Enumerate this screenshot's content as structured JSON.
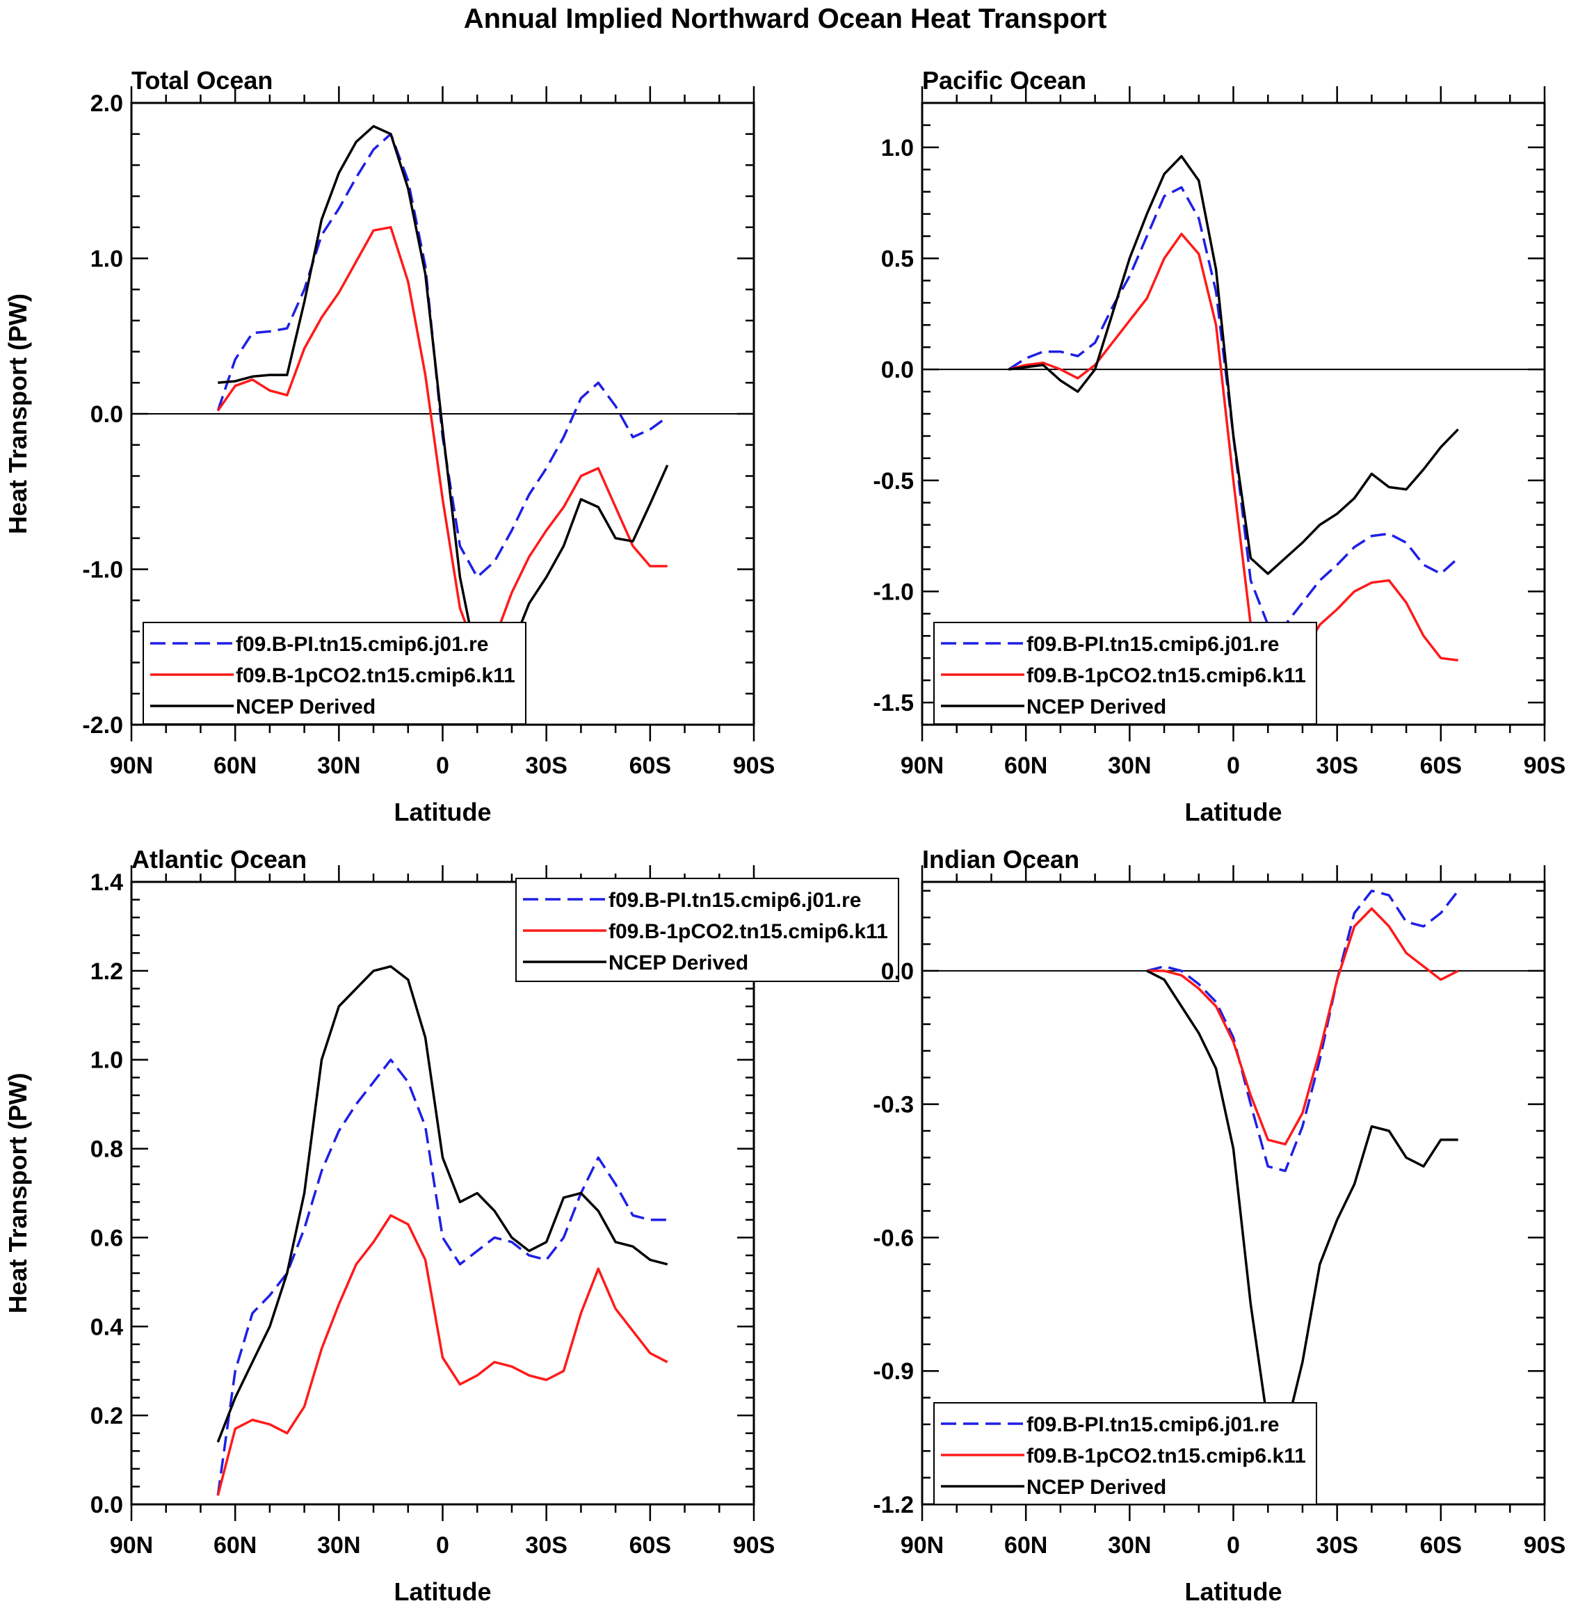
{
  "figure": {
    "title": "Annual Implied Northward Ocean Heat Transport"
  },
  "colors": {
    "pi": "#1f1fe6",
    "co2": "#ff1a1a",
    "ncep": "#000000"
  },
  "chart_data": [
    {
      "type": "line",
      "title": "Total Ocean",
      "xlabel": "Latitude",
      "ylabel": "Heat Transport (PW)",
      "xlim": [
        90,
        -90
      ],
      "ylim": [
        -2.0,
        2.0
      ],
      "xticks": [
        90,
        60,
        30,
        0,
        -30,
        -60,
        -90
      ],
      "xtick_labels": [
        "90N",
        "60N",
        "30N",
        "0",
        "30S",
        "60S",
        "90S"
      ],
      "yticks": [
        -2.0,
        -1.0,
        0.0,
        1.0,
        2.0
      ],
      "ytick_labels": [
        "-2.0",
        "-1.0",
        "0.0",
        "1.0",
        "2.0"
      ],
      "zero_line": true,
      "legend_position": "bottom-left",
      "series": [
        {
          "name": "f09.B-PI.tn15.cmip6.j01.re",
          "style": "dashed",
          "color": "#1f1fe6",
          "x": [
            65,
            60,
            55,
            50,
            45,
            40,
            35,
            30,
            25,
            20,
            15,
            10,
            5,
            0,
            -5,
            -10,
            -15,
            -20,
            -25,
            -30,
            -35,
            -40,
            -45,
            -50,
            -55,
            -60,
            -65
          ],
          "y": [
            0.02,
            0.35,
            0.52,
            0.53,
            0.55,
            0.8,
            1.15,
            1.32,
            1.52,
            1.7,
            1.8,
            1.5,
            0.95,
            -0.15,
            -0.85,
            -1.05,
            -0.95,
            -0.75,
            -0.52,
            -0.35,
            -0.15,
            0.1,
            0.2,
            0.05,
            -0.15,
            -0.1,
            -0.02
          ]
        },
        {
          "name": "f09.B-1pCO2.tn15.cmip6.k11",
          "style": "solid",
          "color": "#ff1a1a",
          "x": [
            65,
            60,
            55,
            50,
            45,
            40,
            35,
            30,
            25,
            20,
            15,
            10,
            5,
            0,
            -5,
            -10,
            -15,
            -20,
            -25,
            -30,
            -35,
            -40,
            -45,
            -50,
            -55,
            -60,
            -65
          ],
          "y": [
            0.02,
            0.18,
            0.22,
            0.15,
            0.12,
            0.42,
            0.62,
            0.78,
            0.98,
            1.18,
            1.2,
            0.85,
            0.25,
            -0.55,
            -1.25,
            -1.55,
            -1.45,
            -1.15,
            -0.92,
            -0.75,
            -0.6,
            -0.4,
            -0.35,
            -0.6,
            -0.85,
            -0.98,
            -0.98
          ]
        },
        {
          "name": "NCEP Derived",
          "style": "solid",
          "color": "#000000",
          "x": [
            65,
            60,
            55,
            50,
            45,
            40,
            35,
            30,
            25,
            20,
            15,
            10,
            5,
            0,
            -5,
            -10,
            -15,
            -20,
            -25,
            -30,
            -35,
            -40,
            -45,
            -50,
            -55,
            -60,
            -65
          ],
          "y": [
            0.2,
            0.21,
            0.24,
            0.25,
            0.25,
            0.72,
            1.25,
            1.55,
            1.75,
            1.85,
            1.8,
            1.45,
            0.9,
            -0.1,
            -1.05,
            -1.6,
            -1.65,
            -1.5,
            -1.22,
            -1.05,
            -0.85,
            -0.55,
            -0.6,
            -0.8,
            -0.82,
            -0.58,
            -0.33
          ]
        }
      ]
    },
    {
      "type": "line",
      "title": "Pacific Ocean",
      "xlabel": "Latitude",
      "ylabel": "",
      "xlim": [
        90,
        -90
      ],
      "ylim": [
        -1.6,
        1.2
      ],
      "xticks": [
        90,
        60,
        30,
        0,
        -30,
        -60,
        -90
      ],
      "xtick_labels": [
        "90N",
        "60N",
        "30N",
        "0",
        "30S",
        "60S",
        "90S"
      ],
      "yticks": [
        -1.5,
        -1.0,
        -0.5,
        0.0,
        0.5,
        1.0
      ],
      "ytick_labels": [
        "-1.5",
        "-1.0",
        "-0.5",
        "0.0",
        "0.5",
        "1.0"
      ],
      "zero_line": true,
      "legend_position": "bottom-left",
      "series": [
        {
          "name": "f09.B-PI.tn15.cmip6.j01.re",
          "style": "dashed",
          "color": "#1f1fe6",
          "x": [
            65,
            60,
            55,
            50,
            45,
            40,
            35,
            30,
            25,
            20,
            15,
            10,
            5,
            0,
            -5,
            -10,
            -15,
            -20,
            -25,
            -30,
            -35,
            -40,
            -45,
            -50,
            -55,
            -60,
            -65
          ],
          "y": [
            0.0,
            0.05,
            0.08,
            0.08,
            0.06,
            0.12,
            0.28,
            0.42,
            0.6,
            0.78,
            0.82,
            0.68,
            0.35,
            -0.3,
            -0.95,
            -1.15,
            -1.15,
            -1.05,
            -0.95,
            -0.88,
            -0.8,
            -0.75,
            -0.74,
            -0.78,
            -0.88,
            -0.92,
            -0.85
          ]
        },
        {
          "name": "f09.B-1pCO2.tn15.cmip6.k11",
          "style": "solid",
          "color": "#ff1a1a",
          "x": [
            65,
            60,
            55,
            50,
            45,
            40,
            35,
            30,
            25,
            20,
            15,
            10,
            5,
            0,
            -5,
            -10,
            -15,
            -20,
            -25,
            -30,
            -35,
            -40,
            -45,
            -50,
            -55,
            -60,
            -65
          ],
          "y": [
            0.0,
            0.02,
            0.03,
            0.0,
            -0.04,
            0.02,
            0.12,
            0.22,
            0.32,
            0.5,
            0.61,
            0.52,
            0.2,
            -0.5,
            -1.15,
            -1.4,
            -1.4,
            -1.28,
            -1.15,
            -1.08,
            -1.0,
            -0.96,
            -0.95,
            -1.05,
            -1.2,
            -1.3,
            -1.31
          ]
        },
        {
          "name": "NCEP Derived",
          "style": "solid",
          "color": "#000000",
          "x": [
            65,
            60,
            55,
            50,
            45,
            40,
            35,
            30,
            25,
            20,
            15,
            10,
            5,
            0,
            -5,
            -10,
            -15,
            -20,
            -25,
            -30,
            -35,
            -40,
            -45,
            -50,
            -55,
            -60,
            -65
          ],
          "y": [
            0.0,
            0.01,
            0.02,
            -0.05,
            -0.1,
            0.0,
            0.25,
            0.5,
            0.7,
            0.88,
            0.96,
            0.85,
            0.45,
            -0.3,
            -0.85,
            -0.92,
            -0.85,
            -0.78,
            -0.7,
            -0.65,
            -0.58,
            -0.47,
            -0.53,
            -0.54,
            -0.45,
            -0.35,
            -0.27
          ]
        }
      ]
    },
    {
      "type": "line",
      "title": "Atlantic Ocean",
      "xlabel": "Latitude",
      "ylabel": "Heat Transport (PW)",
      "xlim": [
        90,
        -90
      ],
      "ylim": [
        0.0,
        1.4
      ],
      "xticks": [
        90,
        60,
        30,
        0,
        -30,
        -60,
        -90
      ],
      "xtick_labels": [
        "90N",
        "60N",
        "30N",
        "0",
        "30S",
        "60S",
        "90S"
      ],
      "yticks": [
        0.0,
        0.2,
        0.4,
        0.6,
        0.8,
        1.0,
        1.2,
        1.4
      ],
      "ytick_labels": [
        "0.0",
        "0.2",
        "0.4",
        "0.6",
        "0.8",
        "1.0",
        "1.2",
        "1.4"
      ],
      "zero_line": false,
      "legend_position": "top-right",
      "series": [
        {
          "name": "f09.B-PI.tn15.cmip6.j01.re",
          "style": "dashed",
          "color": "#1f1fe6",
          "x": [
            65,
            60,
            55,
            50,
            45,
            40,
            35,
            30,
            25,
            20,
            15,
            10,
            5,
            0,
            -5,
            -10,
            -15,
            -20,
            -25,
            -30,
            -35,
            -40,
            -45,
            -50,
            -55,
            -60,
            -65
          ],
          "y": [
            0.02,
            0.3,
            0.43,
            0.47,
            0.52,
            0.62,
            0.75,
            0.84,
            0.9,
            0.95,
            1.0,
            0.95,
            0.85,
            0.6,
            0.54,
            0.57,
            0.6,
            0.59,
            0.56,
            0.55,
            0.6,
            0.7,
            0.78,
            0.72,
            0.65,
            0.64,
            0.64
          ]
        },
        {
          "name": "f09.B-1pCO2.tn15.cmip6.k11",
          "style": "solid",
          "color": "#ff1a1a",
          "x": [
            65,
            60,
            55,
            50,
            45,
            40,
            35,
            30,
            25,
            20,
            15,
            10,
            5,
            0,
            -5,
            -10,
            -15,
            -20,
            -25,
            -30,
            -35,
            -40,
            -45,
            -50,
            -55,
            -60,
            -65
          ],
          "y": [
            0.02,
            0.17,
            0.19,
            0.18,
            0.16,
            0.22,
            0.35,
            0.45,
            0.54,
            0.59,
            0.65,
            0.63,
            0.55,
            0.33,
            0.27,
            0.29,
            0.32,
            0.31,
            0.29,
            0.28,
            0.3,
            0.43,
            0.53,
            0.44,
            0.39,
            0.34,
            0.32
          ]
        },
        {
          "name": "NCEP Derived",
          "style": "solid",
          "color": "#000000",
          "x": [
            65,
            60,
            55,
            50,
            45,
            40,
            35,
            30,
            25,
            20,
            15,
            10,
            5,
            0,
            -5,
            -10,
            -15,
            -20,
            -25,
            -30,
            -35,
            -40,
            -45,
            -50,
            -55,
            -60,
            -65
          ],
          "y": [
            0.14,
            0.24,
            0.32,
            0.4,
            0.52,
            0.7,
            1.0,
            1.12,
            1.16,
            1.2,
            1.21,
            1.18,
            1.05,
            0.78,
            0.68,
            0.7,
            0.66,
            0.6,
            0.57,
            0.59,
            0.69,
            0.7,
            0.66,
            0.59,
            0.58,
            0.55,
            0.54
          ]
        }
      ]
    },
    {
      "type": "line",
      "title": "Indian Ocean",
      "xlabel": "Latitude",
      "ylabel": "",
      "xlim": [
        90,
        -90
      ],
      "ylim": [
        -1.2,
        0.2
      ],
      "xticks": [
        90,
        60,
        30,
        0,
        -30,
        -60,
        -90
      ],
      "xtick_labels": [
        "90N",
        "60N",
        "30N",
        "0",
        "30S",
        "60S",
        "90S"
      ],
      "yticks": [
        -1.2,
        -0.9,
        -0.6,
        -0.3,
        0.0
      ],
      "ytick_labels": [
        "-1.2",
        "-0.9",
        "-0.6",
        "-0.3",
        "0.0"
      ],
      "zero_line": true,
      "legend_position": "bottom-left",
      "series": [
        {
          "name": "f09.B-PI.tn15.cmip6.j01.re",
          "style": "dashed",
          "color": "#1f1fe6",
          "x": [
            25,
            20,
            15,
            10,
            5,
            0,
            -5,
            -10,
            -15,
            -20,
            -25,
            -30,
            -35,
            -40,
            -45,
            -50,
            -55,
            -60,
            -65
          ],
          "y": [
            0.0,
            0.01,
            0.0,
            -0.03,
            -0.07,
            -0.15,
            -0.3,
            -0.44,
            -0.45,
            -0.35,
            -0.2,
            -0.02,
            0.13,
            0.18,
            0.17,
            0.11,
            0.1,
            0.13,
            0.18
          ]
        },
        {
          "name": "f09.B-1pCO2.tn15.cmip6.k11",
          "style": "solid",
          "color": "#ff1a1a",
          "x": [
            25,
            20,
            15,
            10,
            5,
            0,
            -5,
            -10,
            -15,
            -20,
            -25,
            -30,
            -35,
            -40,
            -45,
            -50,
            -55,
            -60,
            -65
          ],
          "y": [
            0.0,
            0.0,
            -0.01,
            -0.04,
            -0.08,
            -0.16,
            -0.28,
            -0.38,
            -0.39,
            -0.32,
            -0.18,
            -0.02,
            0.1,
            0.14,
            0.1,
            0.04,
            0.01,
            -0.02,
            0.0
          ]
        },
        {
          "name": "NCEP Derived",
          "style": "solid",
          "color": "#000000",
          "x": [
            25,
            20,
            15,
            10,
            5,
            0,
            -5,
            -10,
            -15,
            -20,
            -25,
            -30,
            -35,
            -40,
            -45,
            -50,
            -55,
            -60,
            -65
          ],
          "y": [
            0.0,
            -0.02,
            -0.08,
            -0.14,
            -0.22,
            -0.4,
            -0.75,
            -1.02,
            -1.04,
            -0.88,
            -0.66,
            -0.56,
            -0.48,
            -0.35,
            -0.36,
            -0.42,
            -0.44,
            -0.38,
            -0.38
          ]
        }
      ]
    }
  ]
}
